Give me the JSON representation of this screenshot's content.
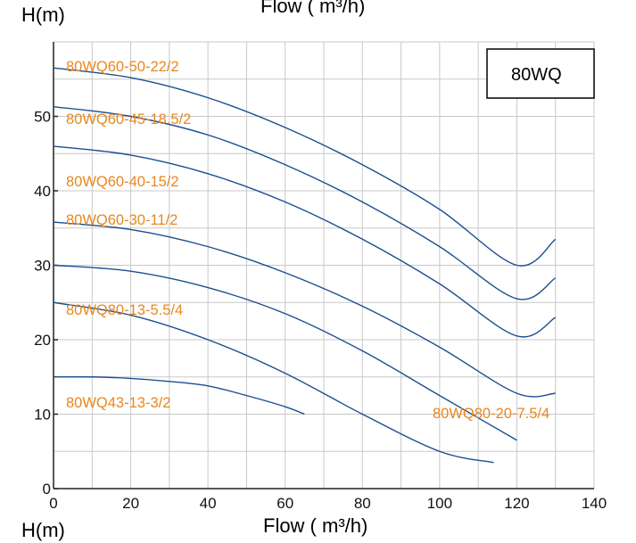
{
  "colors": {
    "curve": "#1a4f8f",
    "label": "#e8871e",
    "grid": "#c8c8c8",
    "axis": "#222222"
  },
  "chart_data": {
    "type": "line",
    "top_ylabel": "H(m)",
    "top_xlabel": "Flow ( m³/h)",
    "xlabel": "Flow ( m³/h)",
    "ylabel": "H(m)",
    "legend_box": "80WQ",
    "xlim": [
      0,
      140
    ],
    "ylim": [
      0,
      60
    ],
    "xticks": [
      0,
      20,
      40,
      60,
      80,
      100,
      120,
      140
    ],
    "yticks": [
      0,
      10,
      20,
      30,
      40,
      50
    ],
    "grid": true,
    "series": [
      {
        "name": "80WQ60-50-22/2",
        "x": [
          0,
          20,
          40,
          60,
          80,
          100,
          120,
          130
        ],
        "y": [
          56.5,
          55.2,
          52.5,
          48.5,
          43.5,
          37.5,
          30,
          33.5
        ]
      },
      {
        "name": "80WQ60-45-18.5/2",
        "x": [
          0,
          20,
          40,
          60,
          80,
          100,
          120,
          130
        ],
        "y": [
          51.3,
          50,
          47.5,
          43.5,
          38.5,
          32.5,
          25.5,
          28.3
        ]
      },
      {
        "name": "80WQ60-40-15/2",
        "x": [
          0,
          20,
          40,
          60,
          80,
          100,
          120,
          130
        ],
        "y": [
          46,
          44.8,
          42.3,
          38.5,
          33.5,
          27.5,
          20.5,
          23
        ]
      },
      {
        "name": "80WQ60-30-11/2",
        "x": [
          0,
          20,
          40,
          60,
          80,
          100,
          120,
          130
        ],
        "y": [
          35.8,
          34.8,
          32.5,
          29,
          24.5,
          19,
          12.8,
          12.8
        ]
      },
      {
        "name": "80WQ80-20-7.5/4",
        "x": [
          0,
          20,
          40,
          60,
          80,
          100,
          120
        ],
        "y": [
          30,
          29.2,
          27,
          23.5,
          18.5,
          12.5,
          6.5
        ]
      },
      {
        "name": "80WQ80-13-5.5/4",
        "x": [
          0,
          20,
          40,
          60,
          80,
          100,
          114
        ],
        "y": [
          25,
          23.3,
          20,
          15.5,
          10,
          5,
          3.5
        ]
      },
      {
        "name": "80WQ43-13-3/2",
        "x": [
          0,
          10,
          20,
          30,
          40,
          50,
          60,
          65
        ],
        "y": [
          15,
          15,
          14.8,
          14.4,
          13.8,
          12.5,
          11,
          10
        ]
      }
    ]
  }
}
